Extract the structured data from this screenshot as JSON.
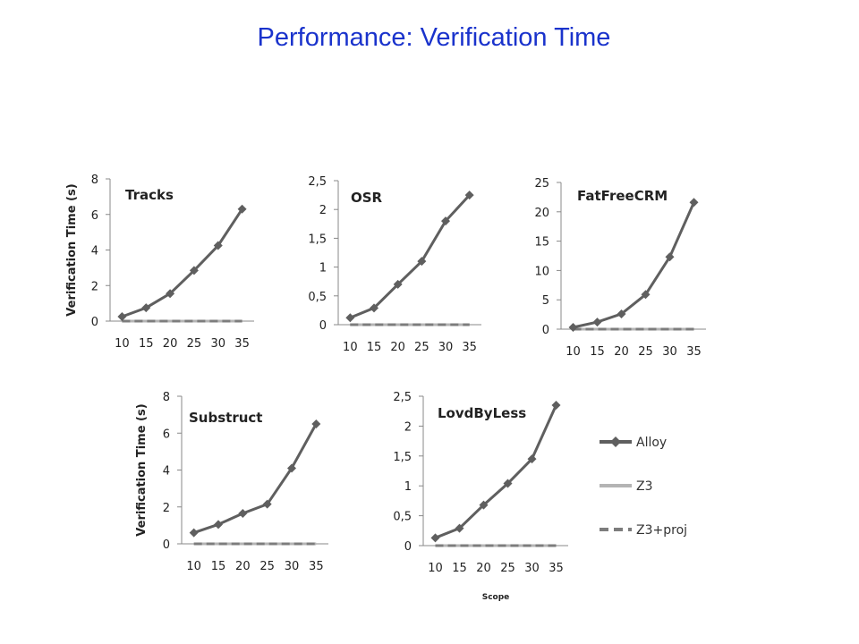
{
  "slide": {
    "title": "Performance: Verification Time"
  },
  "legend": {
    "entries": [
      {
        "name": "Alloy",
        "color": "#5f5f5f",
        "style": "solid-diamond"
      },
      {
        "name": "Z3",
        "color": "#b4b4b4",
        "style": "solid"
      },
      {
        "name": "Z3+proj",
        "color": "#7d7d7d",
        "style": "dashed"
      }
    ]
  },
  "colors": {
    "title": "#1a33cc",
    "axis": "#888888",
    "text": "#222222"
  },
  "chart_data": [
    {
      "type": "line",
      "title": "Tracks",
      "ylabel": "Verification Time (s)",
      "xlabel": "",
      "x": [
        "10",
        "15",
        "20",
        "25",
        "30",
        "35"
      ],
      "ylim": [
        0,
        8
      ],
      "yticks": [
        "0",
        "2",
        "4",
        "6",
        "8"
      ],
      "grid": false,
      "series": [
        {
          "name": "Alloy",
          "values": [
            0.25,
            0.75,
            1.55,
            2.85,
            4.25,
            6.3
          ]
        },
        {
          "name": "Z3",
          "values": [
            0,
            0,
            0,
            0,
            0,
            0
          ]
        },
        {
          "name": "Z3+proj",
          "values": [
            0,
            0,
            0,
            0,
            0,
            0
          ]
        }
      ]
    },
    {
      "type": "line",
      "title": "OSR",
      "ylabel": "",
      "xlabel": "",
      "x": [
        "10",
        "15",
        "20",
        "25",
        "30",
        "35"
      ],
      "ylim": [
        0,
        2.5
      ],
      "yticks": [
        "0",
        "0,5",
        "1",
        "1,5",
        "2",
        "2,5"
      ],
      "grid": false,
      "series": [
        {
          "name": "Alloy",
          "values": [
            0.12,
            0.29,
            0.7,
            1.1,
            1.8,
            2.25
          ]
        },
        {
          "name": "Z3",
          "values": [
            0,
            0,
            0,
            0,
            0,
            0
          ]
        },
        {
          "name": "Z3+proj",
          "values": [
            0,
            0,
            0,
            0,
            0,
            0
          ]
        }
      ]
    },
    {
      "type": "line",
      "title": "FatFreeCRM",
      "ylabel": "",
      "xlabel": "",
      "x": [
        "10",
        "15",
        "20",
        "25",
        "30",
        "35"
      ],
      "ylim": [
        0,
        25
      ],
      "yticks": [
        "0",
        "5",
        "10",
        "15",
        "20",
        "25"
      ],
      "grid": false,
      "series": [
        {
          "name": "Alloy",
          "values": [
            0.3,
            1.2,
            2.6,
            5.9,
            12.3,
            21.6
          ]
        },
        {
          "name": "Z3",
          "values": [
            0,
            0,
            0,
            0,
            0,
            0
          ]
        },
        {
          "name": "Z3+proj",
          "values": [
            0,
            0,
            0,
            0,
            0,
            0
          ]
        }
      ]
    },
    {
      "type": "line",
      "title": "Substruct",
      "ylabel": "Verification Time (s)",
      "xlabel": "",
      "x": [
        "10",
        "15",
        "20",
        "25",
        "30",
        "35"
      ],
      "ylim": [
        0,
        8
      ],
      "yticks": [
        "0",
        "2",
        "4",
        "6",
        "8"
      ],
      "grid": false,
      "series": [
        {
          "name": "Alloy",
          "values": [
            0.6,
            1.05,
            1.65,
            2.15,
            4.1,
            6.5
          ]
        },
        {
          "name": "Z3",
          "values": [
            0,
            0,
            0,
            0,
            0,
            0
          ]
        },
        {
          "name": "Z3+proj",
          "values": [
            0,
            0,
            0,
            0,
            0,
            0
          ]
        }
      ]
    },
    {
      "type": "line",
      "title": "LovdByLess",
      "ylabel": "",
      "xlabel": "Scope",
      "x": [
        "10",
        "15",
        "20",
        "25",
        "30",
        "35"
      ],
      "ylim": [
        0,
        2.5
      ],
      "yticks": [
        "0",
        "0,5",
        "1",
        "1,5",
        "2",
        "2,5"
      ],
      "grid": false,
      "legend": "right",
      "series": [
        {
          "name": "Alloy",
          "values": [
            0.13,
            0.29,
            0.68,
            1.04,
            1.45,
            2.35
          ]
        },
        {
          "name": "Z3",
          "values": [
            0,
            0,
            0,
            0,
            0,
            0
          ]
        },
        {
          "name": "Z3+proj",
          "values": [
            0,
            0,
            0,
            0,
            0,
            0
          ]
        }
      ]
    }
  ]
}
